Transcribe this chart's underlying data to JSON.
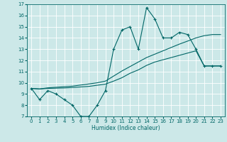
{
  "xlabel": "Humidex (Indice chaleur)",
  "bg_color": "#cce8e8",
  "grid_color": "#ffffff",
  "line_color": "#006666",
  "x": [
    0,
    1,
    2,
    3,
    4,
    5,
    6,
    7,
    8,
    9,
    10,
    11,
    12,
    13,
    14,
    15,
    16,
    17,
    18,
    19,
    20,
    21,
    22,
    23
  ],
  "y_main": [
    9.5,
    8.5,
    9.3,
    9.0,
    8.5,
    8.0,
    7.0,
    7.0,
    8.0,
    9.3,
    13.0,
    14.7,
    15.0,
    13.0,
    16.7,
    15.7,
    14.0,
    14.0,
    14.5,
    14.3,
    13.0,
    11.5,
    11.5,
    11.5
  ],
  "y_line1": [
    9.5,
    9.45,
    9.55,
    9.6,
    9.65,
    9.7,
    9.8,
    9.9,
    10.0,
    10.15,
    10.6,
    11.05,
    11.45,
    11.85,
    12.25,
    12.55,
    12.85,
    13.15,
    13.45,
    13.72,
    14.0,
    14.2,
    14.3,
    14.3
  ],
  "y_line2": [
    9.5,
    9.45,
    9.5,
    9.52,
    9.54,
    9.58,
    9.63,
    9.68,
    9.78,
    9.88,
    10.15,
    10.45,
    10.85,
    11.15,
    11.55,
    11.85,
    12.05,
    12.25,
    12.45,
    12.65,
    12.85,
    11.5,
    11.5,
    11.5
  ],
  "xlim": [
    -0.5,
    23.5
  ],
  "ylim": [
    7,
    17
  ],
  "xticks": [
    0,
    1,
    2,
    3,
    4,
    5,
    6,
    7,
    8,
    9,
    10,
    11,
    12,
    13,
    14,
    15,
    16,
    17,
    18,
    19,
    20,
    21,
    22,
    23
  ],
  "yticks": [
    7,
    8,
    9,
    10,
    11,
    12,
    13,
    14,
    15,
    16,
    17
  ],
  "marker_size": 2.5,
  "linewidth": 0.8,
  "tick_fontsize": 5.0,
  "xlabel_fontsize": 5.5
}
